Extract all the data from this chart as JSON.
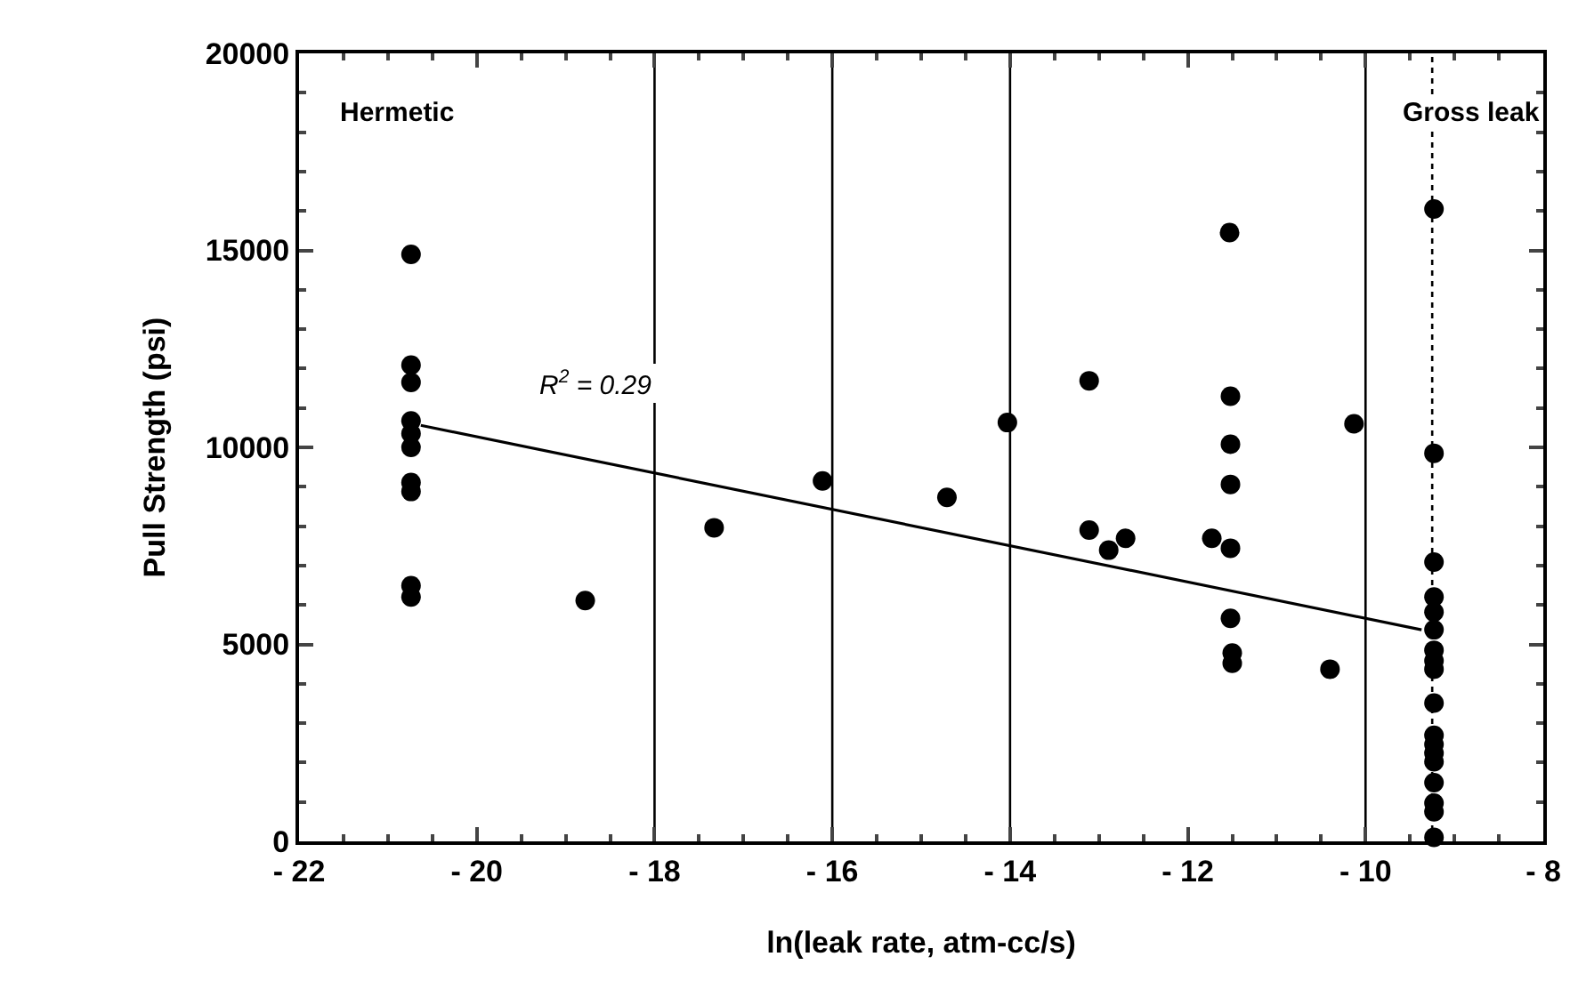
{
  "chart_data": {
    "type": "scatter",
    "xlabel": "ln(leak rate, atm-cc/s)",
    "ylabel": "Pull Strength (psi)",
    "xlim": [
      -22,
      -8
    ],
    "xticks": [
      -22,
      -20,
      -18,
      -16,
      -14,
      -12,
      -10,
      -8
    ],
    "ylim": [
      0,
      20000
    ],
    "yticks": [
      0,
      5000,
      10000,
      15000,
      20000
    ],
    "grid": false,
    "marker": "circle",
    "series": [
      {
        "color": "#000000",
        "x": [
          -20.74,
          -20.74,
          -20.74,
          -20.74,
          -20.74,
          -20.74,
          -20.74,
          -20.74,
          -20.74,
          -20.74,
          -18.78,
          -17.33,
          -16.11,
          -14.71,
          -14.03,
          -13.11,
          -13.11,
          -12.89,
          -12.7,
          -11.73,
          -11.53,
          -11.52,
          -11.52,
          -11.52,
          -11.52,
          -11.52,
          -11.5,
          -11.5,
          -10.4,
          -10.13,
          -9.23,
          -9.23,
          -9.23,
          -9.23,
          -9.23,
          -9.23,
          -9.23,
          -9.23,
          -9.23,
          -9.23,
          -9.23,
          -9.23,
          -9.23,
          -9.23,
          -9.23,
          -9.23,
          -9.23,
          -9.23
        ],
        "values": [
          14900,
          12090,
          11650,
          10670,
          10350,
          10000,
          9110,
          8880,
          6490,
          6200,
          6110,
          7960,
          9150,
          8730,
          10630,
          11690,
          7900,
          7390,
          7690,
          7690,
          15450,
          11300,
          10080,
          9060,
          7440,
          5660,
          4780,
          4520,
          4370,
          10600,
          16050,
          9850,
          7090,
          6200,
          5820,
          5370,
          4850,
          4580,
          4370,
          3510,
          2690,
          2460,
          2240,
          2020,
          1490,
          970,
          750,
          100
        ]
      },
      {
        "type": "line",
        "color": "#000000",
        "marker": "none",
        "line_style": "solid",
        "x": [
          -20.63,
          -9.37
        ],
        "values": [
          10560,
          5370
        ]
      }
    ],
    "ref_lines": [
      {
        "axis": "x",
        "value": -18,
        "color": "#000000",
        "line_style": "solid"
      },
      {
        "axis": "x",
        "value": -16,
        "color": "#000000",
        "line_style": "solid"
      },
      {
        "axis": "x",
        "value": -14,
        "color": "#000000",
        "line_style": "solid"
      },
      {
        "axis": "x",
        "value": -10,
        "color": "#000000",
        "line_style": "solid"
      },
      {
        "axis": "x",
        "value": -9.25,
        "color": "#000000",
        "line_style": "dotted"
      }
    ],
    "annotations": [
      "Hermetic",
      "Gross leak",
      "R$^{2}$ = 0.29"
    ]
  }
}
